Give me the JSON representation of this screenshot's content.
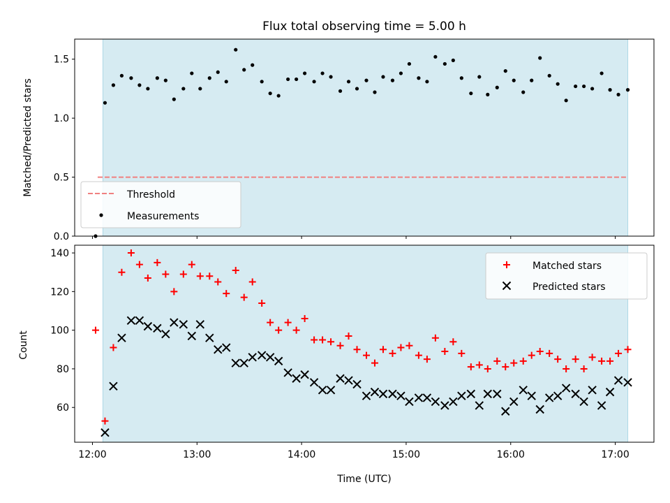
{
  "title": "Flux total observing time = 5.00 h",
  "chart_data": [
    {
      "type": "scatter",
      "ylabel": "Matched/Predicted stars",
      "ylim": [
        0.0,
        1.67
      ],
      "xlim": [
        -0.17,
        5.37
      ],
      "yticks": [
        0.0,
        0.5,
        1.0,
        1.5
      ],
      "ytick_labels": [
        "0.0",
        "0.5",
        "1.0",
        "1.5"
      ],
      "grid": false,
      "legend_position": "lower-left",
      "shaded_span": [
        0.1,
        5.12
      ],
      "threshold": {
        "name": "Threshold",
        "value": 0.5,
        "x_range": [
          0.05,
          5.12
        ]
      },
      "series": [
        {
          "name": "Measurements",
          "x": [
            0.03,
            0.12,
            0.2,
            0.28,
            0.37,
            0.45,
            0.53,
            0.62,
            0.7,
            0.78,
            0.87,
            0.95,
            1.03,
            1.12,
            1.2,
            1.28,
            1.37,
            1.45,
            1.53,
            1.62,
            1.7,
            1.78,
            1.87,
            1.95,
            2.03,
            2.12,
            2.2,
            2.28,
            2.37,
            2.45,
            2.53,
            2.62,
            2.7,
            2.78,
            2.87,
            2.95,
            3.03,
            3.12,
            3.2,
            3.28,
            3.37,
            3.45,
            3.53,
            3.62,
            3.7,
            3.78,
            3.87,
            3.95,
            4.03,
            4.12,
            4.2,
            4.28,
            4.37,
            4.45,
            4.53,
            4.62,
            4.7,
            4.78,
            4.87,
            4.95,
            5.03,
            5.12
          ],
          "y": [
            0.0,
            1.13,
            1.28,
            1.36,
            1.34,
            1.28,
            1.25,
            1.34,
            1.32,
            1.16,
            1.25,
            1.38,
            1.25,
            1.34,
            1.39,
            1.31,
            1.58,
            1.41,
            1.45,
            1.31,
            1.21,
            1.19,
            1.33,
            1.33,
            1.38,
            1.31,
            1.38,
            1.35,
            1.23,
            1.31,
            1.25,
            1.32,
            1.22,
            1.35,
            1.32,
            1.38,
            1.46,
            1.34,
            1.31,
            1.52,
            1.46,
            1.49,
            1.34,
            1.21,
            1.35,
            1.2,
            1.26,
            1.4,
            1.32,
            1.22,
            1.32,
            1.51,
            1.36,
            1.29,
            1.15,
            1.27,
            1.27,
            1.25,
            1.38,
            1.24,
            1.2,
            1.24
          ]
        }
      ]
    },
    {
      "type": "scatter",
      "xlabel": "Time (UTC)",
      "ylabel": "Count",
      "ylim": [
        42,
        144
      ],
      "xlim": [
        -0.17,
        5.37
      ],
      "yticks": [
        60,
        80,
        100,
        120,
        140
      ],
      "ytick_labels": [
        "60",
        "80",
        "100",
        "120",
        "140"
      ],
      "xticks": [
        0,
        1,
        2,
        3,
        4,
        5
      ],
      "xtick_labels": [
        "12:00",
        "13:00",
        "14:00",
        "15:00",
        "16:00",
        "17:00"
      ],
      "grid": false,
      "legend_position": "upper-right",
      "shaded_span": [
        0.1,
        5.12
      ],
      "series": [
        {
          "name": "Matched stars",
          "color": "#ff0000",
          "marker": "+",
          "x": [
            0.03,
            0.12,
            0.2,
            0.28,
            0.37,
            0.45,
            0.53,
            0.62,
            0.7,
            0.78,
            0.87,
            0.95,
            1.03,
            1.12,
            1.2,
            1.28,
            1.37,
            1.45,
            1.53,
            1.62,
            1.7,
            1.78,
            1.87,
            1.95,
            2.03,
            2.12,
            2.2,
            2.28,
            2.37,
            2.45,
            2.53,
            2.62,
            2.7,
            2.78,
            2.87,
            2.95,
            3.03,
            3.12,
            3.2,
            3.28,
            3.37,
            3.45,
            3.53,
            3.62,
            3.7,
            3.78,
            3.87,
            3.95,
            4.03,
            4.12,
            4.2,
            4.28,
            4.37,
            4.45,
            4.53,
            4.62,
            4.7,
            4.78,
            4.87,
            4.95,
            5.03,
            5.12
          ],
          "y": [
            100,
            53,
            91,
            130,
            140,
            134,
            127,
            135,
            129,
            120,
            129,
            134,
            128,
            128,
            125,
            119,
            131,
            117,
            125,
            114,
            104,
            100,
            104,
            100,
            106,
            95,
            95,
            94,
            92,
            97,
            90,
            87,
            83,
            90,
            88,
            91,
            92,
            87,
            85,
            96,
            89,
            94,
            88,
            81,
            82,
            80,
            84,
            81,
            83,
            84,
            87,
            89,
            88,
            85,
            80,
            85,
            80,
            86,
            84,
            84,
            88,
            90
          ]
        },
        {
          "name": "Predicted stars",
          "color": "#000000",
          "marker": "x",
          "x": [
            0.12,
            0.2,
            0.28,
            0.37,
            0.45,
            0.53,
            0.62,
            0.7,
            0.78,
            0.87,
            0.95,
            1.03,
            1.12,
            1.2,
            1.28,
            1.37,
            1.45,
            1.53,
            1.62,
            1.7,
            1.78,
            1.87,
            1.95,
            2.03,
            2.12,
            2.2,
            2.28,
            2.37,
            2.45,
            2.53,
            2.62,
            2.7,
            2.78,
            2.87,
            2.95,
            3.03,
            3.12,
            3.2,
            3.28,
            3.37,
            3.45,
            3.53,
            3.62,
            3.7,
            3.78,
            3.87,
            3.95,
            4.03,
            4.12,
            4.2,
            4.28,
            4.37,
            4.45,
            4.53,
            4.62,
            4.7,
            4.78,
            4.87,
            4.95,
            5.03,
            5.12
          ],
          "y": [
            47,
            71,
            96,
            105,
            105,
            102,
            101,
            98,
            104,
            103,
            97,
            103,
            96,
            90,
            91,
            83,
            83,
            86,
            87,
            86,
            84,
            78,
            75,
            77,
            73,
            69,
            69,
            75,
            74,
            72,
            66,
            68,
            67,
            67,
            66,
            63,
            65,
            65,
            63,
            61,
            63,
            66,
            67,
            61,
            67,
            67,
            58,
            63,
            69,
            66,
            59,
            65,
            66,
            70,
            67,
            63,
            69,
            61,
            68,
            74,
            73
          ]
        }
      ]
    }
  ]
}
